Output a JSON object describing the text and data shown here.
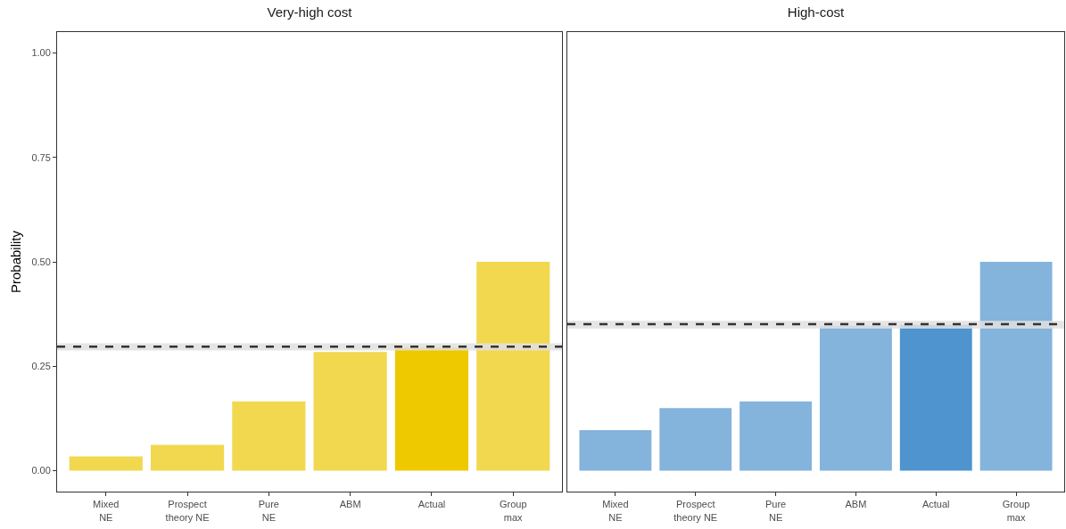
{
  "chart_data": [
    {
      "type": "bar",
      "title": "Very-high cost",
      "ylabel": "Probability",
      "categories": [
        "Mixed NE",
        "Prospect theory NE",
        "Pure NE",
        "ABM",
        "Actual",
        "Group max"
      ],
      "values": [
        0.034,
        0.062,
        0.166,
        0.284,
        0.295,
        0.5
      ],
      "colors": [
        "#f1d84f",
        "#f1d84f",
        "#f1d84f",
        "#f1d84f",
        "#eec900",
        "#f1d84f"
      ],
      "ylim": [
        -0.05,
        1.05
      ],
      "yticks": [
        {
          "value": 0,
          "label": "0.00"
        },
        {
          "value": 0.25,
          "label": "0.25"
        },
        {
          "value": 0.5,
          "label": "0.50"
        },
        {
          "value": 0.75,
          "label": "0.75"
        },
        {
          "value": 1,
          "label": "1.00"
        }
      ],
      "grid": false,
      "bands": [
        {
          "axis": "y",
          "from": 0.288,
          "to": 0.305,
          "color": "#e0e0e0"
        }
      ],
      "ref_lines": [
        {
          "axis": "y",
          "value": 0.297,
          "color": "#333333",
          "line_style": "dashed"
        }
      ]
    },
    {
      "type": "bar",
      "title": "High-cost",
      "categories": [
        "Mixed NE",
        "Prospect theory NE",
        "Pure NE",
        "ABM",
        "Actual",
        "Group max"
      ],
      "values": [
        0.097,
        0.15,
        0.166,
        0.347,
        0.349,
        0.5
      ],
      "colors": [
        "#84b3dc",
        "#84b3dc",
        "#84b3dc",
        "#84b3dc",
        "#4f93cf",
        "#84b3dc"
      ],
      "ylim": [
        -0.05,
        1.05
      ],
      "tick_labels": "x",
      "grid": false,
      "bands": [
        {
          "axis": "y",
          "from": 0.34,
          "to": 0.359,
          "color": "#e0e0e0"
        }
      ],
      "ref_lines": [
        {
          "axis": "y",
          "value": 0.351,
          "color": "#333333",
          "line_style": "dashed"
        }
      ]
    }
  ]
}
